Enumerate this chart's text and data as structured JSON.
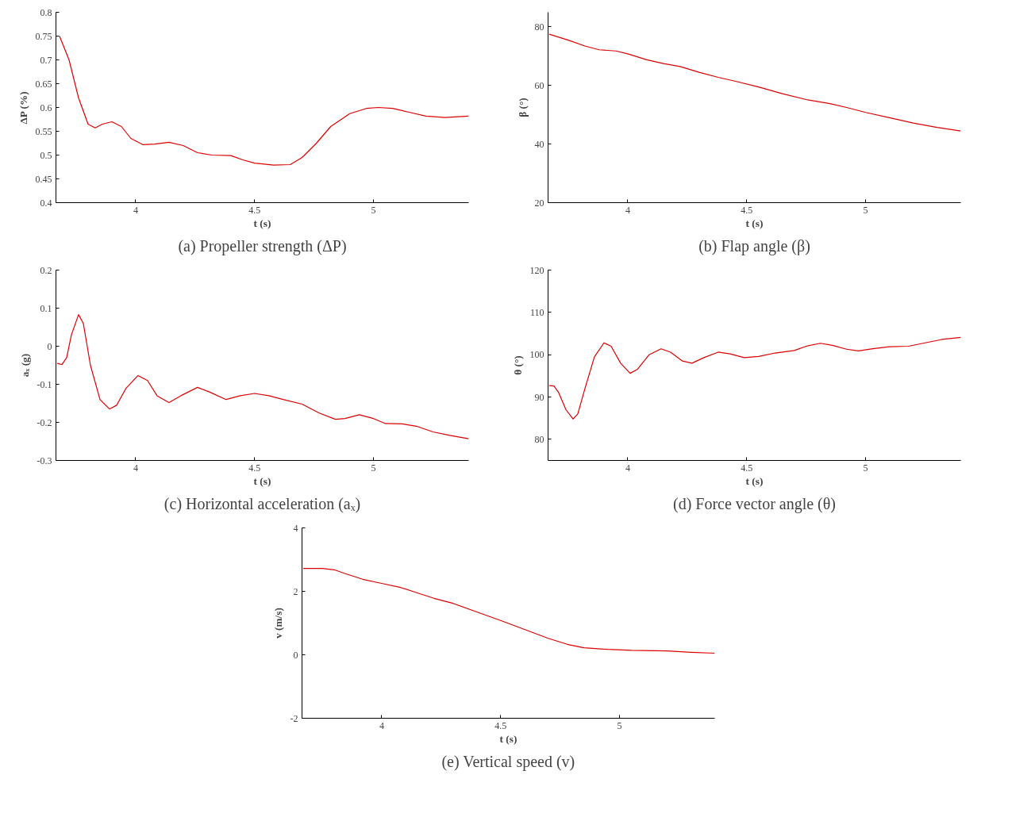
{
  "chart_data": [
    {
      "type": "line",
      "title": "(a) Propeller strength (ΔP)",
      "xlabel": "t (s)",
      "ylabel": "ΔP (%)",
      "xlim": [
        3.665,
        5.4
      ],
      "xticks": [
        4,
        4.5,
        5
      ],
      "ylim": [
        0.4,
        0.8
      ],
      "yticks": [
        0.4,
        0.45,
        0.5,
        0.55,
        0.6,
        0.65,
        0.7,
        0.75,
        0.8
      ],
      "grid": false,
      "marker": "none",
      "line_style": "solid",
      "series": [
        {
          "color": "#dd0000",
          "x": [
            3.68,
            3.72,
            3.76,
            3.8,
            3.83,
            3.86,
            3.9,
            3.94,
            3.98,
            4.03,
            4.08,
            4.14,
            4.2,
            4.26,
            4.32,
            4.4,
            4.45,
            4.5,
            4.58,
            4.65,
            4.7,
            4.76,
            4.82,
            4.9,
            4.97,
            5.02,
            5.08,
            5.15,
            5.22,
            5.3,
            5.4
          ],
          "values": [
            0.75,
            0.7,
            0.62,
            0.565,
            0.557,
            0.565,
            0.57,
            0.56,
            0.535,
            0.522,
            0.523,
            0.527,
            0.52,
            0.505,
            0.5,
            0.499,
            0.49,
            0.483,
            0.479,
            0.48,
            0.495,
            0.525,
            0.56,
            0.587,
            0.598,
            0.6,
            0.598,
            0.59,
            0.582,
            0.579,
            0.582
          ]
        }
      ]
    },
    {
      "type": "line",
      "title": "(b) Flap angle (β)",
      "xlabel": "t (s)",
      "ylabel": "β (°)",
      "xlim": [
        3.665,
        5.4
      ],
      "xticks": [
        4,
        4.5,
        5
      ],
      "ylim": [
        20,
        85
      ],
      "yticks": [
        20,
        40,
        60,
        80
      ],
      "grid": false,
      "marker": "none",
      "line_style": "solid",
      "series": [
        {
          "color": "#dd0000",
          "x": [
            3.67,
            3.75,
            3.82,
            3.88,
            3.95,
            4.0,
            4.08,
            4.15,
            4.22,
            4.3,
            4.38,
            4.45,
            4.55,
            4.65,
            4.75,
            4.85,
            4.92,
            5.0,
            5.1,
            5.2,
            5.3,
            5.4
          ],
          "values": [
            77.5,
            75.5,
            73.5,
            72.2,
            71.8,
            70.8,
            68.8,
            67.5,
            66.5,
            64.5,
            62.8,
            61.5,
            59.5,
            57.2,
            55.2,
            53.8,
            52.5,
            50.8,
            49,
            47.2,
            45.7,
            44.5
          ]
        }
      ]
    },
    {
      "type": "line",
      "title": "(c) Horizontal acceleration (aₓ)",
      "xlabel": "t (s)",
      "ylabel": "aₓ (g)",
      "xlim": [
        3.665,
        5.4
      ],
      "xticks": [
        4,
        4.5,
        5
      ],
      "ylim": [
        -0.3,
        0.2
      ],
      "yticks": [
        -0.3,
        -0.2,
        -0.1,
        0,
        0.1,
        0.2
      ],
      "grid": false,
      "marker": "none",
      "line_style": "solid",
      "series": [
        {
          "color": "#dd0000",
          "x": [
            3.67,
            3.69,
            3.71,
            3.73,
            3.76,
            3.78,
            3.81,
            3.85,
            3.89,
            3.92,
            3.96,
            4.01,
            4.05,
            4.09,
            4.14,
            4.19,
            4.26,
            4.31,
            4.38,
            4.44,
            4.5,
            4.56,
            4.62,
            4.7,
            4.77,
            4.84,
            4.88,
            4.94,
            5.0,
            5.05,
            5.12,
            5.18,
            5.25,
            5.32,
            5.4
          ],
          "values": [
            -0.045,
            -0.048,
            -0.03,
            0.03,
            0.083,
            0.06,
            -0.05,
            -0.14,
            -0.165,
            -0.155,
            -0.11,
            -0.077,
            -0.09,
            -0.13,
            -0.148,
            -0.13,
            -0.108,
            -0.12,
            -0.14,
            -0.13,
            -0.124,
            -0.13,
            -0.14,
            -0.152,
            -0.175,
            -0.192,
            -0.19,
            -0.18,
            -0.19,
            -0.203,
            -0.204,
            -0.21,
            -0.225,
            -0.234,
            -0.243
          ]
        }
      ]
    },
    {
      "type": "line",
      "title": "(d) Force vector angle (θ)",
      "xlabel": "t (s)",
      "ylabel": "θ (°)",
      "xlim": [
        3.665,
        5.4
      ],
      "xticks": [
        4,
        4.5,
        5
      ],
      "ylim": [
        75,
        120
      ],
      "yticks": [
        80,
        90,
        100,
        110,
        120
      ],
      "grid": false,
      "marker": "none",
      "line_style": "solid",
      "series": [
        {
          "color": "#dd0000",
          "x": [
            3.67,
            3.69,
            3.71,
            3.74,
            3.77,
            3.79,
            3.82,
            3.86,
            3.9,
            3.93,
            3.97,
            4.01,
            4.04,
            4.09,
            4.14,
            4.18,
            4.23,
            4.27,
            4.32,
            4.38,
            4.43,
            4.49,
            4.55,
            4.62,
            4.7,
            4.75,
            4.81,
            4.86,
            4.92,
            4.97,
            5.03,
            5.1,
            5.18,
            5.25,
            5.32,
            5.4
          ],
          "values": [
            92.7,
            92.6,
            91,
            87,
            84.8,
            86,
            92,
            99.5,
            102.8,
            102,
            98,
            95.6,
            96.5,
            100,
            101.4,
            100.6,
            98.5,
            98,
            99.3,
            100.6,
            100.2,
            99.3,
            99.6,
            100.4,
            101,
            102,
            102.7,
            102.2,
            101.3,
            100.9,
            101.4,
            101.9,
            102,
            102.8,
            103.6,
            104.1
          ]
        }
      ]
    },
    {
      "type": "line",
      "title": "(e) Vertical speed (v)",
      "xlabel": "t (s)",
      "ylabel": "v (m/s)",
      "xlim": [
        3.665,
        5.4
      ],
      "xticks": [
        4,
        4.5,
        5
      ],
      "ylim": [
        -2,
        4
      ],
      "yticks": [
        -2,
        0,
        2,
        4
      ],
      "grid": false,
      "marker": "none",
      "line_style": "solid",
      "series": [
        {
          "color": "#dd0000",
          "x": [
            3.67,
            3.75,
            3.8,
            3.85,
            3.92,
            4.0,
            4.08,
            4.15,
            4.22,
            4.3,
            4.4,
            4.5,
            4.6,
            4.7,
            4.78,
            4.85,
            4.95,
            5.05,
            5.2,
            5.3,
            5.4
          ],
          "values": [
            2.72,
            2.72,
            2.68,
            2.55,
            2.38,
            2.25,
            2.12,
            1.95,
            1.78,
            1.62,
            1.35,
            1.08,
            0.8,
            0.52,
            0.33,
            0.22,
            0.17,
            0.14,
            0.12,
            0.08,
            0.05
          ]
        }
      ]
    }
  ]
}
